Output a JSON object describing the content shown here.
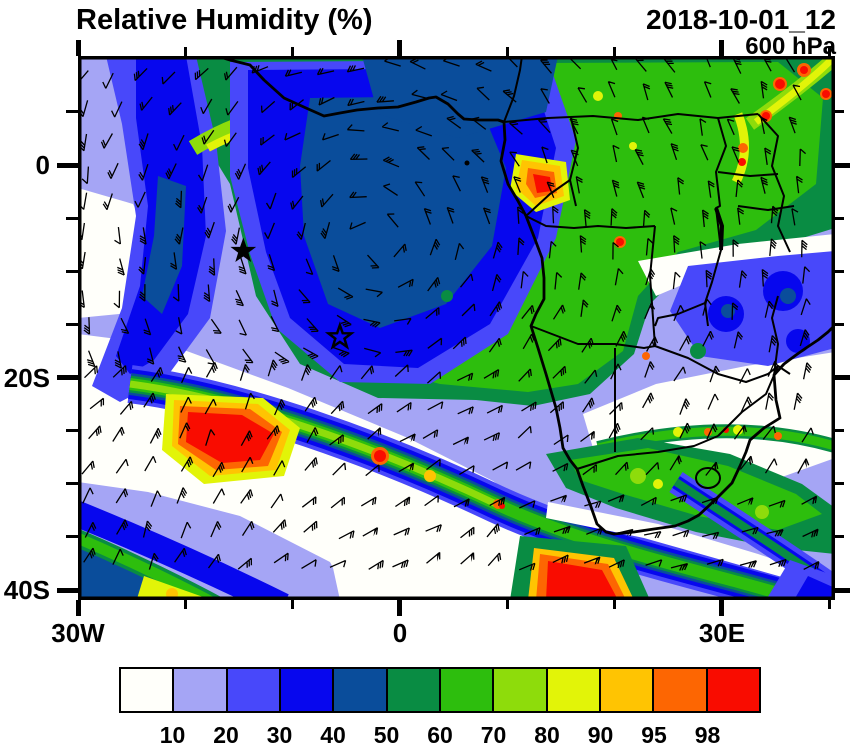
{
  "header": {
    "title": "Relative Humidity (%)",
    "datetime": "2018-10-01_12",
    "level": "600 hPa"
  },
  "map": {
    "x_ticks": [
      {
        "label": "30W",
        "lon": -30
      },
      {
        "label": "0",
        "lon": 0
      },
      {
        "label": "30E",
        "lon": 30
      }
    ],
    "x_minor_lons": [
      -20,
      -10,
      10,
      20,
      40
    ],
    "y_ticks": [
      {
        "label": "0",
        "lat": 0
      },
      {
        "label": "20S",
        "lat": -20
      },
      {
        "label": "40S",
        "lat": -40
      }
    ],
    "y_minor_lats": [
      5,
      -5,
      -10,
      -15,
      -25,
      -30,
      -35
    ],
    "markers": [
      {
        "type": "star-filled",
        "lon": -14.6,
        "lat": -8.1
      },
      {
        "type": "star-open",
        "lon": -5.6,
        "lat": -16.2
      }
    ]
  },
  "colorbar": {
    "labels": [
      "10",
      "20",
      "30",
      "40",
      "50",
      "60",
      "70",
      "80",
      "90",
      "95",
      "98"
    ],
    "colors": [
      "#FFFFFA",
      "#A5A5F5",
      "#4848FA",
      "#0707EE",
      "#0A4D9B",
      "#098C43",
      "#2DBE0D",
      "#8EDC0B",
      "#E2F408",
      "#FFC402",
      "#FD6602",
      "#F90C00"
    ]
  }
}
